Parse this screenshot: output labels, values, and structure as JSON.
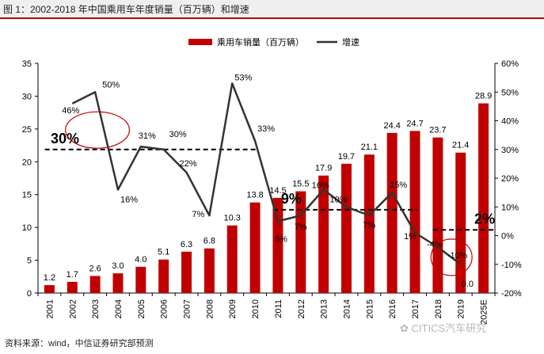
{
  "header": {
    "title": "图 1：2002-2018 年中国乘用车年度销量（百万辆）和增速"
  },
  "footer": {
    "source": "资料来源：wind，中信证券研究部预测",
    "watermark": "CITICS汽车研究"
  },
  "chart_data": {
    "type": "bar+line",
    "categories": [
      "2001",
      "2002",
      "2003",
      "2004",
      "2005",
      "2006",
      "2007",
      "2008",
      "2009",
      "2010",
      "2011",
      "2012",
      "2013",
      "2014",
      "2015",
      "2016",
      "2017",
      "2018",
      "2019",
      "2025E"
    ],
    "series": [
      {
        "name": "乘用车销量（百万辆）",
        "type": "bar",
        "axis": "left",
        "color": "#c00000",
        "values": [
          1.2,
          1.7,
          2.6,
          3.0,
          4.0,
          5.1,
          6.3,
          6.8,
          10.3,
          13.8,
          14.5,
          15.5,
          17.9,
          19.7,
          21.1,
          24.4,
          24.7,
          23.7,
          21.4,
          28.9
        ],
        "labels": [
          "1.2",
          "1.7",
          "2.6",
          "3.0",
          "4.0",
          "5.1",
          "6.3",
          "6.8",
          "10.3",
          "13.8",
          "14.5",
          "15.5",
          "17.9",
          "19.7",
          "21.1",
          "24.4",
          "24.7",
          "23.7",
          "21.4",
          "28.9"
        ]
      },
      {
        "name": "增速",
        "type": "line",
        "axis": "right",
        "color": "#333333",
        "values": [
          null,
          46,
          50,
          16,
          31,
          30,
          22,
          7,
          53,
          33,
          5,
          7,
          16,
          10,
          7,
          15,
          1,
          -4,
          -10,
          null
        ],
        "labels": [
          "",
          "46%",
          "50%",
          "16%",
          "31%",
          "30%",
          "22%",
          "7%",
          "53%",
          "33%",
          "5%",
          "7%",
          "16%",
          "10%",
          "7%",
          "15%",
          "1%",
          "-4%",
          "-10%",
          ""
        ]
      }
    ],
    "extra_labels": [
      {
        "category": "2025E",
        "text": "0.0"
      }
    ],
    "left_axis": {
      "min": 0,
      "max": 35,
      "ticks": [
        0,
        5,
        10,
        15,
        20,
        25,
        30,
        35
      ]
    },
    "right_axis": {
      "min": -20,
      "max": 60,
      "ticks": [
        -20,
        -10,
        0,
        10,
        20,
        30,
        40,
        50,
        60
      ],
      "tick_labels": [
        "-20%",
        "-10%",
        "0%",
        "10%",
        "20%",
        "30%",
        "40%",
        "50%",
        "60%"
      ]
    },
    "legend": {
      "position": "top",
      "items": [
        "乘用车销量（百万辆）",
        "增速"
      ]
    },
    "annotations": [
      {
        "label": "30%",
        "value": 30,
        "from": "2001",
        "to": "2010"
      },
      {
        "label": "9%",
        "value": 9,
        "from": "2011",
        "to": "2017"
      },
      {
        "label": "2%",
        "value": 2,
        "from": "2018",
        "to": "2025E"
      }
    ],
    "highlight_circles": [
      {
        "from": "2002",
        "to": "2004"
      },
      {
        "from": "2018",
        "to": "2019"
      }
    ]
  }
}
